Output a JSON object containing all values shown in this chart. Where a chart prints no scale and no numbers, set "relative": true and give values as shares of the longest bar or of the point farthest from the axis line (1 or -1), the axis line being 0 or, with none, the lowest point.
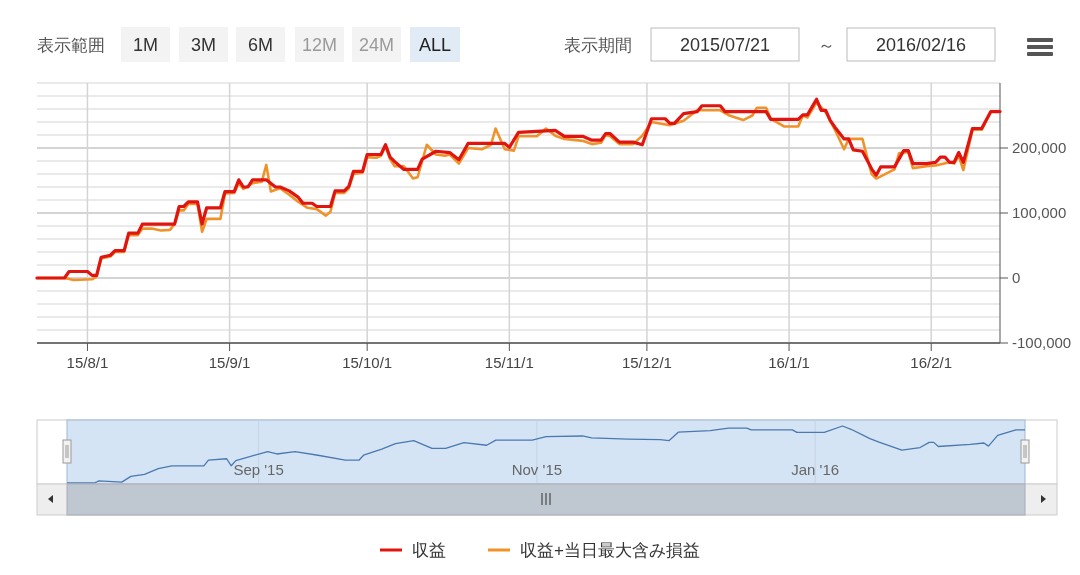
{
  "chart_data": [
    {
      "type": "line",
      "legend": "bottom",
      "grid": true,
      "line_style": "solid",
      "marker": "none",
      "annotations": [
        "表示範囲",
        "1M",
        "3M",
        "6M",
        "12M",
        "24M",
        "ALL",
        "表示期間",
        "2015/07/21",
        "～",
        "2016/02/16"
      ],
      "xlim": [
        "2015-07-21",
        "2016-02-16"
      ],
      "xticks": [
        {
          "value": "2015-08-01",
          "label": "15/8/1"
        },
        {
          "value": "2015-09-01",
          "label": "15/9/1"
        },
        {
          "value": "2015-10-01",
          "label": "15/10/1"
        },
        {
          "value": "2015-11-01",
          "label": "15/11/1"
        },
        {
          "value": "2015-12-01",
          "label": "15/12/1"
        },
        {
          "value": "2016-01-01",
          "label": "16/1/1"
        },
        {
          "value": "2016-02-01",
          "label": "16/2/1"
        }
      ],
      "ylim": [
        -100000,
        300000
      ],
      "yticks": [
        {
          "value": -100000,
          "label": "-100,000"
        },
        {
          "value": 0,
          "label": "0"
        },
        {
          "value": 100000,
          "label": "100,000"
        },
        {
          "value": 200000,
          "label": "200,000"
        }
      ],
      "series": [
        {
          "name": "収益",
          "color": "#e0150f",
          "x": [
            "2015-07-21",
            "2015-07-27",
            "2015-07-28",
            "2015-08-01",
            "2015-08-02",
            "2015-08-03",
            "2015-08-04",
            "2015-08-06",
            "2015-08-07",
            "2015-08-09",
            "2015-08-10",
            "2015-08-12",
            "2015-08-13",
            "2015-08-20",
            "2015-08-21",
            "2015-08-22",
            "2015-08-23",
            "2015-08-25",
            "2015-08-26",
            "2015-08-27",
            "2015-08-30",
            "2015-08-31",
            "2015-09-02",
            "2015-09-03",
            "2015-09-04",
            "2015-09-05",
            "2015-09-06",
            "2015-09-09",
            "2015-09-11",
            "2015-09-12",
            "2015-09-14",
            "2015-09-16",
            "2015-09-17",
            "2015-09-19",
            "2015-09-20",
            "2015-09-23",
            "2015-09-24",
            "2015-09-26",
            "2015-09-27",
            "2015-09-28",
            "2015-09-30",
            "2015-10-01",
            "2015-10-04",
            "2015-10-05",
            "2015-10-06",
            "2015-10-07",
            "2015-10-09",
            "2015-10-12",
            "2015-10-13",
            "2015-10-16",
            "2015-10-19",
            "2015-10-21",
            "2015-10-23",
            "2015-10-31",
            "2015-11-01",
            "2015-11-03",
            "2015-11-11",
            "2015-11-13",
            "2015-11-17",
            "2015-11-19",
            "2015-11-21",
            "2015-11-22",
            "2015-11-23",
            "2015-11-25",
            "2015-11-28",
            "2015-11-30",
            "2015-12-02",
            "2015-12-05",
            "2015-12-06",
            "2015-12-07",
            "2015-12-09",
            "2015-12-12",
            "2015-12-13",
            "2015-12-17",
            "2015-12-18",
            "2015-12-27",
            "2015-12-28",
            "2016-01-03",
            "2016-01-04",
            "2016-01-05",
            "2016-01-07",
            "2016-01-08",
            "2016-01-09",
            "2016-01-10",
            "2016-01-11",
            "2016-01-13",
            "2016-01-14",
            "2016-01-15",
            "2016-01-17",
            "2016-01-19",
            "2016-01-20",
            "2016-01-21",
            "2016-01-24",
            "2016-01-26",
            "2016-01-27",
            "2016-01-28",
            "2016-01-31",
            "2016-02-02",
            "2016-02-03",
            "2016-02-04",
            "2016-02-05",
            "2016-02-06",
            "2016-02-07",
            "2016-02-08",
            "2016-02-10",
            "2016-02-12",
            "2016-02-14",
            "2016-02-16"
          ],
          "values": [
            0,
            0,
            10000,
            10000,
            4000,
            4000,
            32000,
            35000,
            42000,
            42000,
            69000,
            69000,
            83000,
            83000,
            110000,
            110000,
            117000,
            117000,
            83000,
            108000,
            108000,
            133000,
            133000,
            151000,
            140000,
            140000,
            151000,
            151000,
            140000,
            140000,
            134000,
            124000,
            115000,
            115000,
            110000,
            110000,
            134000,
            134000,
            141000,
            164000,
            164000,
            190000,
            190000,
            205000,
            186000,
            179000,
            167000,
            167000,
            183000,
            195000,
            193000,
            182000,
            207000,
            207000,
            201000,
            224000,
            227000,
            218000,
            218000,
            212000,
            212000,
            222000,
            222000,
            209000,
            209000,
            205000,
            245000,
            245000,
            238000,
            238000,
            253000,
            256000,
            265000,
            265000,
            256000,
            256000,
            244000,
            244000,
            251000,
            251000,
            275000,
            258000,
            258000,
            242000,
            232000,
            214000,
            214000,
            197000,
            195000,
            168000,
            158000,
            171000,
            171000,
            196000,
            196000,
            176000,
            176000,
            178000,
            186000,
            186000,
            178000,
            178000,
            193000,
            178000,
            230000,
            230000,
            256000,
            256000
          ]
        },
        {
          "name": "収益+当日最大含み損益",
          "color": "#f0922a",
          "x": [
            "2015-07-21",
            "2015-07-27",
            "2015-07-29",
            "2015-08-02",
            "2015-08-03",
            "2015-08-04",
            "2015-08-06",
            "2015-08-07",
            "2015-08-09",
            "2015-08-10",
            "2015-08-12",
            "2015-08-13",
            "2015-08-15",
            "2015-08-17",
            "2015-08-19",
            "2015-08-20",
            "2015-08-21",
            "2015-08-22",
            "2015-08-23",
            "2015-08-25",
            "2015-08-26",
            "2015-08-27",
            "2015-08-30",
            "2015-08-31",
            "2015-09-02",
            "2015-09-03",
            "2015-09-04",
            "2015-09-06",
            "2015-09-08",
            "2015-09-09",
            "2015-09-10",
            "2015-09-12",
            "2015-09-14",
            "2015-09-16",
            "2015-09-18",
            "2015-09-20",
            "2015-09-22",
            "2015-09-23",
            "2015-09-24",
            "2015-09-26",
            "2015-09-27",
            "2015-09-28",
            "2015-09-30",
            "2015-10-01",
            "2015-10-03",
            "2015-10-04",
            "2015-10-05",
            "2015-10-06",
            "2015-10-07",
            "2015-10-09",
            "2015-10-11",
            "2015-10-12",
            "2015-10-13",
            "2015-10-14",
            "2015-10-16",
            "2015-10-18",
            "2015-10-19",
            "2015-10-21",
            "2015-10-23",
            "2015-10-26",
            "2015-10-28",
            "2015-10-29",
            "2015-10-31",
            "2015-11-02",
            "2015-11-03",
            "2015-11-07",
            "2015-11-09",
            "2015-11-11",
            "2015-11-13",
            "2015-11-17",
            "2015-11-19",
            "2015-11-21",
            "2015-11-22",
            "2015-11-23",
            "2015-11-25",
            "2015-11-28",
            "2015-11-30",
            "2015-12-02",
            "2015-12-06",
            "2015-12-09",
            "2015-12-12",
            "2015-12-17",
            "2015-12-19",
            "2015-12-22",
            "2015-12-24",
            "2015-12-25",
            "2015-12-27",
            "2015-12-28",
            "2015-12-31",
            "2016-01-03",
            "2016-01-04",
            "2016-01-05",
            "2016-01-07",
            "2016-01-09",
            "2016-01-11",
            "2016-01-13",
            "2016-01-14",
            "2016-01-17",
            "2016-01-19",
            "2016-01-20",
            "2016-01-24",
            "2016-01-25",
            "2016-01-27",
            "2016-01-28",
            "2016-01-31",
            "2016-02-02",
            "2016-02-05",
            "2016-02-06",
            "2016-02-07",
            "2016-02-08",
            "2016-02-10",
            "2016-02-12",
            "2016-02-14",
            "2016-02-16"
          ],
          "values": [
            0,
            0,
            -3000,
            -2000,
            2000,
            30000,
            33000,
            40000,
            40000,
            66000,
            66000,
            76000,
            76000,
            73000,
            74000,
            83000,
            104000,
            104000,
            114000,
            114000,
            71000,
            91000,
            91000,
            130000,
            131000,
            146000,
            137000,
            146000,
            148000,
            174000,
            133000,
            138000,
            128000,
            117000,
            108000,
            106000,
            96000,
            102000,
            131000,
            131000,
            138000,
            160000,
            162000,
            186000,
            185000,
            188000,
            203000,
            183000,
            172000,
            172000,
            153000,
            155000,
            180000,
            205000,
            190000,
            188000,
            190000,
            176000,
            200000,
            198000,
            205000,
            230000,
            198000,
            196000,
            218000,
            218000,
            230000,
            219000,
            214000,
            211000,
            206000,
            208000,
            220000,
            218000,
            206000,
            206000,
            219000,
            240000,
            235000,
            242000,
            258000,
            258000,
            250000,
            243000,
            250000,
            262000,
            262000,
            245000,
            233000,
            233000,
            250000,
            247000,
            270000,
            255000,
            228000,
            198000,
            214000,
            214000,
            160000,
            153000,
            167000,
            192000,
            194000,
            169000,
            172000,
            173000,
            178000,
            176000,
            188000,
            166000,
            228000,
            228000,
            256000,
            256000
          ]
        }
      ]
    },
    {
      "type": "line",
      "relative": true,
      "grid": "x",
      "color": "#4a78b0",
      "xlim": [
        "2015-07-21",
        "2016-02-16"
      ],
      "xticks": [
        {
          "value": "2015-09-01",
          "label": "Sep '15"
        },
        {
          "value": "2015-11-01",
          "label": "Nov '15"
        },
        {
          "value": "2016-01-01",
          "label": "Jan '16"
        }
      ],
      "x": [
        "2015-07-21",
        "2015-07-27",
        "2015-07-28",
        "2015-08-02",
        "2015-08-04",
        "2015-08-07",
        "2015-08-10",
        "2015-08-13",
        "2015-08-20",
        "2015-08-21",
        "2015-08-25",
        "2015-08-26",
        "2015-08-27",
        "2015-08-31",
        "2015-09-03",
        "2015-09-05",
        "2015-09-09",
        "2015-09-14",
        "2015-09-20",
        "2015-09-23",
        "2015-09-24",
        "2015-09-28",
        "2015-10-01",
        "2015-10-05",
        "2015-10-09",
        "2015-10-12",
        "2015-10-16",
        "2015-10-21",
        "2015-10-23",
        "2015-10-31",
        "2015-11-03",
        "2015-11-11",
        "2015-11-13",
        "2015-11-21",
        "2015-11-28",
        "2015-11-30",
        "2015-12-02",
        "2015-12-09",
        "2015-12-13",
        "2015-12-17",
        "2015-12-18",
        "2015-12-27",
        "2015-12-28",
        "2016-01-03",
        "2016-01-07",
        "2016-01-09",
        "2016-01-13",
        "2016-01-15",
        "2016-01-20",
        "2016-01-24",
        "2016-01-26",
        "2016-01-27",
        "2016-01-28",
        "2016-02-04",
        "2016-02-07",
        "2016-02-08",
        "2016-02-10",
        "2016-02-14",
        "2016-02-16"
      ],
      "values": [
        0,
        0,
        0.036,
        0.015,
        0.116,
        0.153,
        0.251,
        0.302,
        0.302,
        0.4,
        0.425,
        0.302,
        0.393,
        0.484,
        0.549,
        0.509,
        0.549,
        0.487,
        0.4,
        0.4,
        0.487,
        0.596,
        0.691,
        0.745,
        0.607,
        0.607,
        0.709,
        0.662,
        0.753,
        0.753,
        0.815,
        0.825,
        0.793,
        0.771,
        0.76,
        0.745,
        0.891,
        0.92,
        0.964,
        0.964,
        0.931,
        0.931,
        0.887,
        0.887,
        1,
        0.938,
        0.778,
        0.716,
        0.575,
        0.622,
        0.713,
        0.713,
        0.64,
        0.676,
        0.702,
        0.647,
        0.836,
        0.931,
        0.931
      ]
    }
  ]
}
